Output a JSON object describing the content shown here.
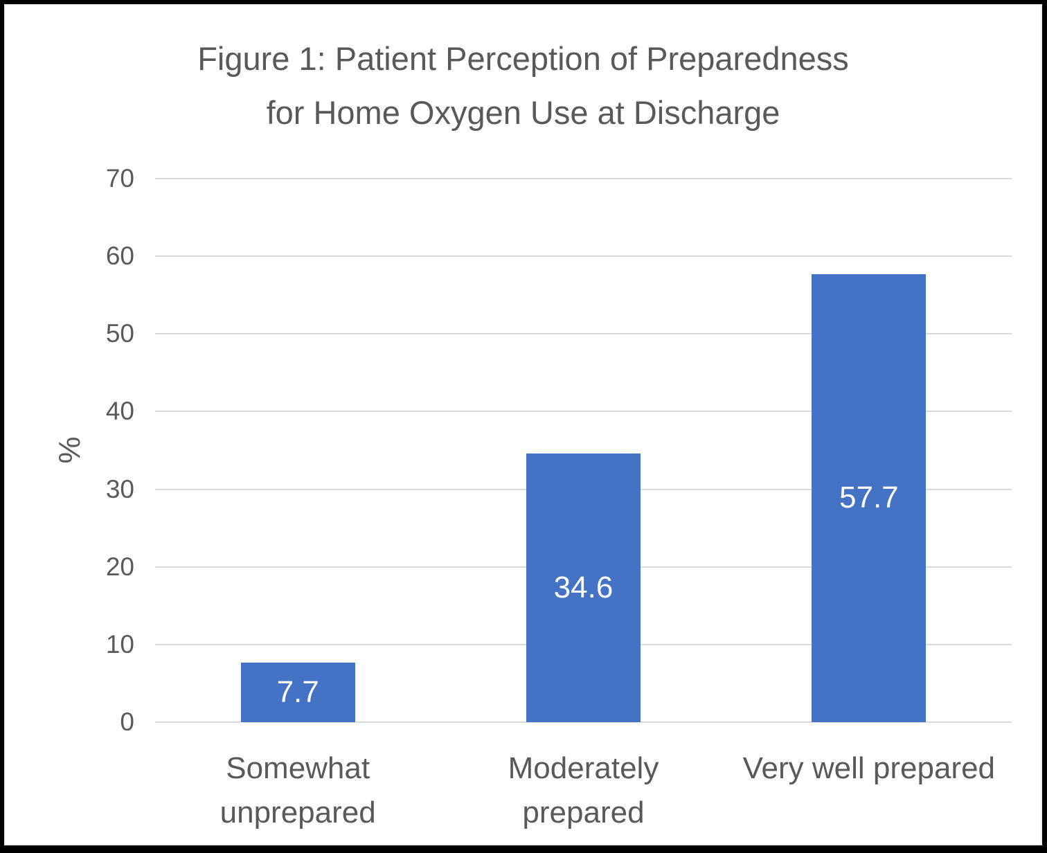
{
  "figure": {
    "title_lines": [
      "Figure 1: Patient Perception of Preparedness",
      "for Home Oxygen Use at Discharge"
    ]
  },
  "chart_data": {
    "type": "bar",
    "title": "Figure 1: Patient Perception of Preparedness for Home Oxygen Use at Discharge",
    "categories": [
      "Somewhat unprepared",
      "Moderately prepared",
      "Very well prepared"
    ],
    "categories_lines": [
      [
        "Somewhat",
        "unprepared"
      ],
      [
        "Moderately",
        "prepared"
      ],
      [
        "Very well prepared"
      ]
    ],
    "values": [
      7.7,
      34.6,
      57.7
    ],
    "data_labels": [
      "7.7",
      "34.6",
      "57.7"
    ],
    "xlabel": "",
    "ylabel": "%",
    "ylim": [
      0,
      70
    ],
    "yticks": [
      0,
      10,
      20,
      30,
      40,
      50,
      60,
      70
    ],
    "grid": true,
    "legend": "none",
    "colors": {
      "bar": "#4472C4",
      "gridline": "#D9D9D9",
      "axis_text": "#595959",
      "title_text": "#595959",
      "data_label_text": "#FFFFFF",
      "background": "#FFFFFF",
      "frame_border": "#000000"
    }
  }
}
